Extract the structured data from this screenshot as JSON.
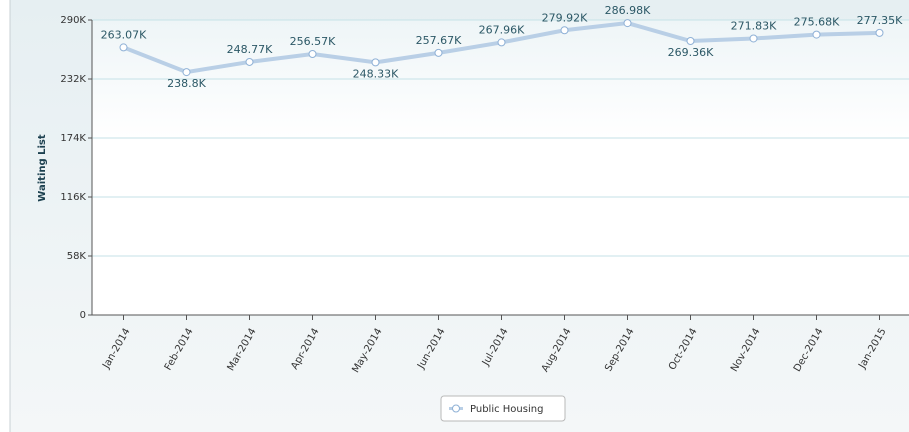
{
  "chart_data": {
    "type": "line",
    "y_label": "Waiting List",
    "categories": [
      "Jan-2014",
      "Feb-2014",
      "Mar-2014",
      "Apr-2014",
      "May-2014",
      "Jun-2014",
      "Jul-2014",
      "Aug-2014",
      "Sep-2014",
      "Oct-2014",
      "Nov-2014",
      "Dec-2014",
      "Jan-2015"
    ],
    "series": [
      {
        "name": "Public Housing",
        "color": "#b9cfe6",
        "values": [
          263070,
          238800,
          248770,
          256570,
          248330,
          257670,
          267960,
          279920,
          286980,
          269360,
          271830,
          275680,
          277350
        ],
        "value_labels": [
          "263.07K",
          "238.8K",
          "248.77K",
          "256.57K",
          "248.33K",
          "257.67K",
          "267.96K",
          "279.92K",
          "286.98K",
          "269.36K",
          "271.83K",
          "275.68K",
          "277.35K"
        ]
      }
    ],
    "ylim": [
      0,
      290000
    ],
    "yticks": [
      {
        "value": 0,
        "label": "0"
      },
      {
        "value": 58000,
        "label": "58K"
      },
      {
        "value": 116000,
        "label": "116K"
      },
      {
        "value": 174000,
        "label": "174K"
      },
      {
        "value": 232000,
        "label": "232K"
      },
      {
        "value": 290000,
        "label": "290K"
      }
    ],
    "grid": true,
    "legend": "bottom"
  }
}
